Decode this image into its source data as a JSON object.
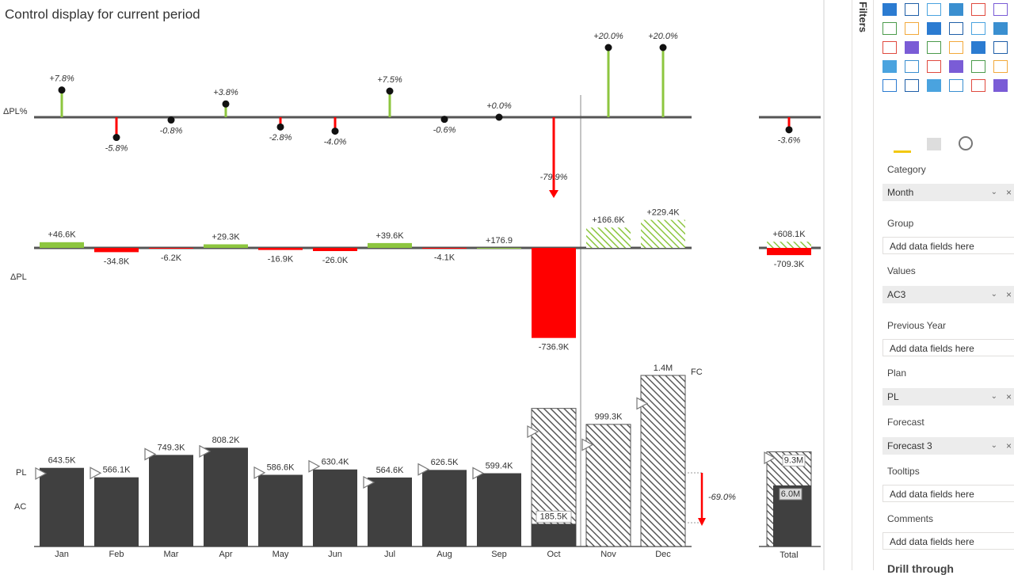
{
  "chart_data": {
    "type": "variance",
    "title": "Control display for current period",
    "row_labels": {
      "pct": "ΔPL%",
      "abs": "ΔPL",
      "plan": "PL",
      "ac": "AC"
    },
    "categories": [
      "Jan",
      "Feb",
      "Mar",
      "Apr",
      "May",
      "Jun",
      "Jul",
      "Aug",
      "Sep",
      "Oct",
      "Nov",
      "Dec"
    ],
    "total_label": "Total",
    "colors": {
      "positive": "#8dc63f",
      "negative": "#ff0000",
      "actual": "#404040",
      "forecast": "#5a5a5a"
    },
    "delta_pct": {
      "values": [
        7.8,
        -5.8,
        -0.8,
        3.8,
        -2.8,
        -4.0,
        7.5,
        -0.6,
        0.0,
        -79.9,
        20.0,
        20.0
      ],
      "value_labels": [
        "+7.8%",
        "-5.8%",
        "-0.8%",
        "+3.8%",
        "-2.8%",
        "-4.0%",
        "+7.5%",
        "-0.6%",
        "+0.0%",
        "-79.9%",
        "+20.0%",
        "+20.0%"
      ],
      "total": -3.6,
      "total_label": "-3.6%"
    },
    "delta_abs": {
      "values": [
        46600,
        -34800,
        -6200,
        29300,
        -16900,
        -26000,
        39600,
        -4100,
        176.9,
        -736900,
        166600,
        229400
      ],
      "value_labels": [
        "+46.6K",
        "-34.8K",
        "-6.2K",
        "+29.3K",
        "-16.9K",
        "-26.0K",
        "+39.6K",
        "-4.1K",
        "+176.9",
        "-736.9K",
        "+166.6K",
        "+229.4K"
      ],
      "total_positive": 608100,
      "total_positive_label": "+608.1K",
      "total_negative": -709300,
      "total_negative_label": "-709.3K"
    },
    "ylim": [
      0,
      1400000
    ],
    "actual": {
      "values": [
        643500,
        566100,
        749300,
        808200,
        586600,
        630400,
        564600,
        626500,
        599400,
        185500,
        null,
        null
      ],
      "value_labels": [
        "643.5K",
        "566.1K",
        "749.3K",
        "808.2K",
        "586.6K",
        "630.4K",
        "564.6K",
        "626.5K",
        "599.4K",
        "185.5K",
        null,
        null
      ],
      "total": 6000000,
      "total_label": "6.0M"
    },
    "forecast": {
      "values": [
        null,
        null,
        null,
        null,
        null,
        null,
        null,
        null,
        null,
        1130000,
        999300,
        1400000
      ],
      "value_labels": [
        null,
        null,
        null,
        null,
        null,
        null,
        null,
        null,
        null,
        null,
        "999.3K",
        "1.4M"
      ],
      "total": 9300000,
      "total_label": "9.3M",
      "tag": "FC"
    },
    "plan": {
      "values": [
        596900,
        600900,
        755500,
        778900,
        603500,
        656400,
        525000,
        630600,
        599200,
        940000,
        832700,
        1170600
      ],
      "total": 8700000
    },
    "annotation": {
      "value": -69.0,
      "label": "-69.0%"
    }
  },
  "pane": {
    "filters": "Filters",
    "sections": [
      {
        "label": "Category",
        "field": "Month"
      },
      {
        "label": "Group",
        "placeholder": "Add data fields here"
      },
      {
        "label": "Values",
        "field": "AC3"
      },
      {
        "label": "Previous Year",
        "placeholder": "Add data fields here"
      },
      {
        "label": "Plan",
        "field": "PL"
      },
      {
        "label": "Forecast",
        "field": "Forecast 3"
      },
      {
        "label": "Tooltips",
        "placeholder": "Add data fields here"
      },
      {
        "label": "Comments",
        "placeholder": "Add data fields here"
      }
    ],
    "drill_through": "Drill through"
  }
}
